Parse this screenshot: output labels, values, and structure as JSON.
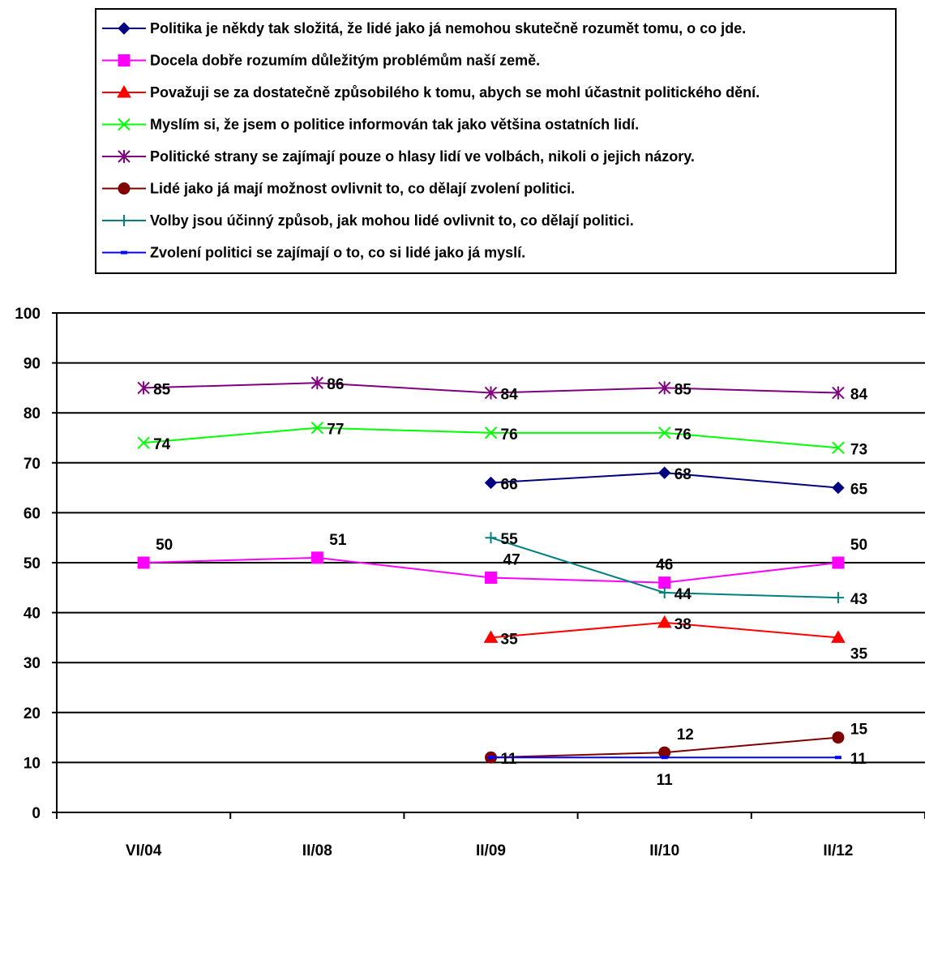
{
  "chart_data": {
    "type": "line",
    "title": "",
    "xlabel": "",
    "ylabel": "",
    "categories": [
      "VI/04",
      "II/08",
      "II/09",
      "II/10",
      "II/12"
    ],
    "ylim": [
      0,
      100
    ],
    "yticks": [
      0,
      10,
      20,
      30,
      40,
      50,
      60,
      70,
      80,
      90,
      100
    ],
    "grid": "horizontal",
    "legend_position": "top",
    "series": [
      {
        "name": "Politika je někdy tak složitá, že lidé jako já nemohou skutečně rozumět tomu, o co jde.",
        "color": "#000080",
        "marker": "diamond",
        "values": [
          null,
          null,
          66,
          68,
          65
        ]
      },
      {
        "name": "Docela dobře rozumím důležitým problémům naší země.",
        "color": "#FF00FF",
        "marker": "square",
        "values": [
          50,
          51,
          47,
          46,
          50
        ]
      },
      {
        "name": "Považuji se za dostatečně způsobilého k tomu, abych se mohl účastnit politického dění.",
        "color": "#FF0000",
        "marker": "triangle",
        "values": [
          null,
          null,
          35,
          38,
          35
        ]
      },
      {
        "name": "Myslím si, že jsem o politice informován tak jako většina ostatních lidí.",
        "color": "#00FF00",
        "marker": "x",
        "values": [
          74,
          77,
          76,
          76,
          73
        ]
      },
      {
        "name": "Politické strany se zajímají pouze o hlasy lidí ve volbách, nikoli o jejich názory.",
        "color": "#800080",
        "marker": "star",
        "values": [
          85,
          86,
          84,
          85,
          84
        ]
      },
      {
        "name": "Lidé jako já mají možnost ovlivnit to, co dělají zvolení politici.",
        "color": "#800000",
        "marker": "circle",
        "values": [
          null,
          null,
          11,
          12,
          15
        ]
      },
      {
        "name": "Volby jsou účinný způsob, jak mohou lidé ovlivnit to, co dělají politici.",
        "color": "#008080",
        "marker": "plus",
        "values": [
          null,
          null,
          55,
          44,
          43
        ]
      },
      {
        "name": "Zvolení politici se zajímají o to, co si lidé jako já myslí.",
        "color": "#0000FF",
        "marker": "dash",
        "values": [
          null,
          null,
          11,
          11,
          11
        ]
      }
    ]
  }
}
